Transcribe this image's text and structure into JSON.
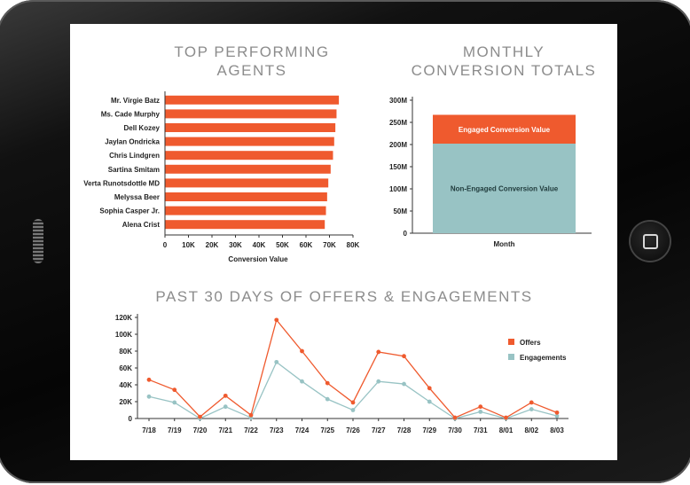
{
  "colors": {
    "orange": "#ef5a2e",
    "teal": "#98c3c4",
    "axis": "#333333"
  },
  "chart_data": [
    {
      "type": "bar",
      "orientation": "horizontal",
      "title_line1": "TOP PERFORMING",
      "title_line2": "AGENTS",
      "xlabel": "Conversion Value",
      "categories": [
        "Mr. Virgie Batz",
        "Ms. Cade Murphy",
        "Dell Kozey",
        "Jaylan Ondricka",
        "Chris Lindgren",
        "Sartina Smitam",
        "Verta Runotsdottle MD",
        "Melyssa Beer",
        "Sophia Casper Jr.",
        "Alena Crist"
      ],
      "values": [
        74000,
        73000,
        72500,
        72000,
        71500,
        70500,
        69500,
        69000,
        68500,
        68000
      ],
      "xlim": [
        0,
        80000
      ],
      "xticks": [
        "0",
        "10K",
        "20K",
        "30K",
        "40K",
        "50K",
        "60K",
        "70K",
        "80K"
      ]
    },
    {
      "type": "bar",
      "stacked": true,
      "title_line1": "MONTHLY",
      "title_line2": "CONVERSION TOTALS",
      "categories": [
        "Month"
      ],
      "series": [
        {
          "name": "Non-Engaged Conversion Value",
          "values": [
            202000000
          ]
        },
        {
          "name": "Engaged Conversion Value",
          "values": [
            65000000
          ]
        }
      ],
      "ylim": [
        0,
        300000000
      ],
      "yticks": [
        "0",
        "50M",
        "100M",
        "150M",
        "200M",
        "250M",
        "300M"
      ]
    },
    {
      "type": "line",
      "title": "PAST 30 DAYS OF OFFERS & ENGAGEMENTS",
      "x": [
        "7/18",
        "7/19",
        "7/20",
        "7/21",
        "7/22",
        "7/23",
        "7/24",
        "7/25",
        "7/26",
        "7/27",
        "7/28",
        "7/29",
        "7/30",
        "7/31",
        "8/01",
        "8/02",
        "8/03"
      ],
      "series": [
        {
          "name": "Offers",
          "values": [
            46000,
            34000,
            2000,
            27000,
            4000,
            117000,
            80000,
            42000,
            19000,
            79000,
            74000,
            36000,
            1000,
            14000,
            1000,
            19000,
            7000
          ]
        },
        {
          "name": "Engagements",
          "values": [
            26000,
            19000,
            0,
            14000,
            1000,
            67000,
            44000,
            23000,
            10000,
            44000,
            41000,
            20000,
            0,
            8000,
            0,
            11000,
            3000
          ]
        }
      ],
      "ylim": [
        0,
        120000
      ],
      "yticks": [
        "0",
        "20K",
        "40K",
        "60K",
        "80K",
        "100K",
        "120K"
      ],
      "legend_position": "right"
    }
  ]
}
